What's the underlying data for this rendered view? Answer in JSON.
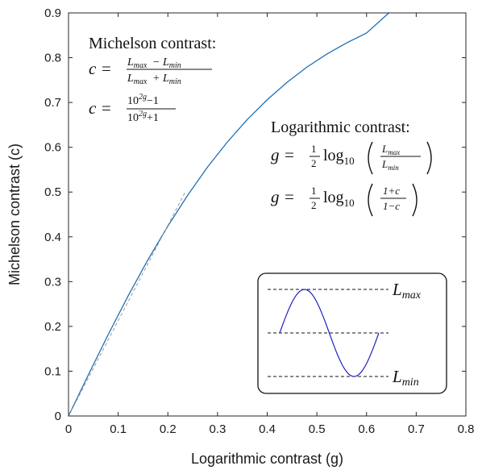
{
  "chart_data": {
    "type": "line",
    "xlabel": "Logarithmic contrast (g)",
    "ylabel": "Michelson contrast (c)",
    "xlim": [
      0,
      0.8
    ],
    "ylim": [
      0,
      0.9
    ],
    "xticks": [
      "0",
      "0.1",
      "0.2",
      "0.3",
      "0.4",
      "0.5",
      "0.6",
      "0.7",
      "0.8"
    ],
    "yticks": [
      "0",
      "0.1",
      "0.2",
      "0.3",
      "0.4",
      "0.5",
      "0.6",
      "0.7",
      "0.8",
      "0.9"
    ],
    "grid": false,
    "series": [
      {
        "style": "solid",
        "color": "#1f6fb4",
        "x": [
          0,
          0.04,
          0.08,
          0.12,
          0.16,
          0.2,
          0.24,
          0.28,
          0.32,
          0.36,
          0.4,
          0.44,
          0.48,
          0.52,
          0.56,
          0.6,
          0.645
        ],
        "y": [
          0,
          0.092,
          0.182,
          0.268,
          0.349,
          0.424,
          0.493,
          0.556,
          0.612,
          0.662,
          0.706,
          0.745,
          0.779,
          0.808,
          0.833,
          0.855,
          0.9
        ]
      },
      {
        "style": "dashed",
        "color": "#999999",
        "x": [
          0,
          0.235
        ],
        "y": [
          0,
          0.5
        ]
      }
    ],
    "annotations": {
      "michelson_heading": "Michelson contrast:",
      "log_heading": "Logarithmic contrast:",
      "eq_c": "c =",
      "eq_g": "g =",
      "lmax": "L",
      "lmax_sub": "max",
      "lmin": "L",
      "lmin_sub": "min",
      "minus": "−",
      "plus": "+",
      "ten_2g_base": "10",
      "ten_2g_exp": "2g",
      "minus_one": "−1",
      "plus_one": "+1",
      "half_num": "1",
      "half_den": "2",
      "log": "log",
      "log_sub": "10",
      "one_plus_c": "1+c",
      "one_minus_c": "1−c"
    },
    "inset": {
      "label_max": "L",
      "label_max_sub": "max",
      "label_min": "L",
      "label_min_sub": "min",
      "wave_color": "#2020c0"
    }
  }
}
